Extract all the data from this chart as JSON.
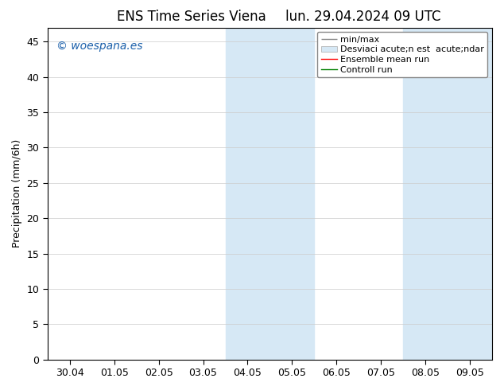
{
  "title_left": "ENS Time Series Viena",
  "title_right": "lun. 29.04.2024 09 UTC",
  "ylabel": "Precipitation (mm/6h)",
  "watermark": "© woespana.es",
  "ylim": [
    0,
    47
  ],
  "yticks": [
    0,
    5,
    10,
    15,
    20,
    25,
    30,
    35,
    40,
    45
  ],
  "xtick_labels": [
    "30.04",
    "01.05",
    "02.05",
    "03.05",
    "04.05",
    "05.05",
    "06.05",
    "07.05",
    "08.05",
    "09.05"
  ],
  "xtick_positions": [
    0,
    1,
    2,
    3,
    4,
    5,
    6,
    7,
    8,
    9
  ],
  "shaded_regions": [
    {
      "xstart": 3.5,
      "xend": 4.5
    },
    {
      "xstart": 4.5,
      "xend": 5.5
    },
    {
      "xstart": 7.5,
      "xend": 8.5
    },
    {
      "xstart": 8.5,
      "xend": 9.5
    }
  ],
  "shaded_color": "#d6e8f5",
  "shaded_alpha": 1.0,
  "background_color": "#ffffff",
  "plot_bg_color": "#ffffff",
  "spine_color": "#000000",
  "tick_color": "#000000",
  "title_fontsize": 12,
  "axis_label_fontsize": 9,
  "tick_fontsize": 9,
  "legend_fontsize": 8,
  "watermark_color": "#1a5faa",
  "watermark_fontsize": 10,
  "legend_line_color": "#888888",
  "legend_patch_color": "#d6e8f5",
  "legend_patch_edge": "#aaaaaa"
}
